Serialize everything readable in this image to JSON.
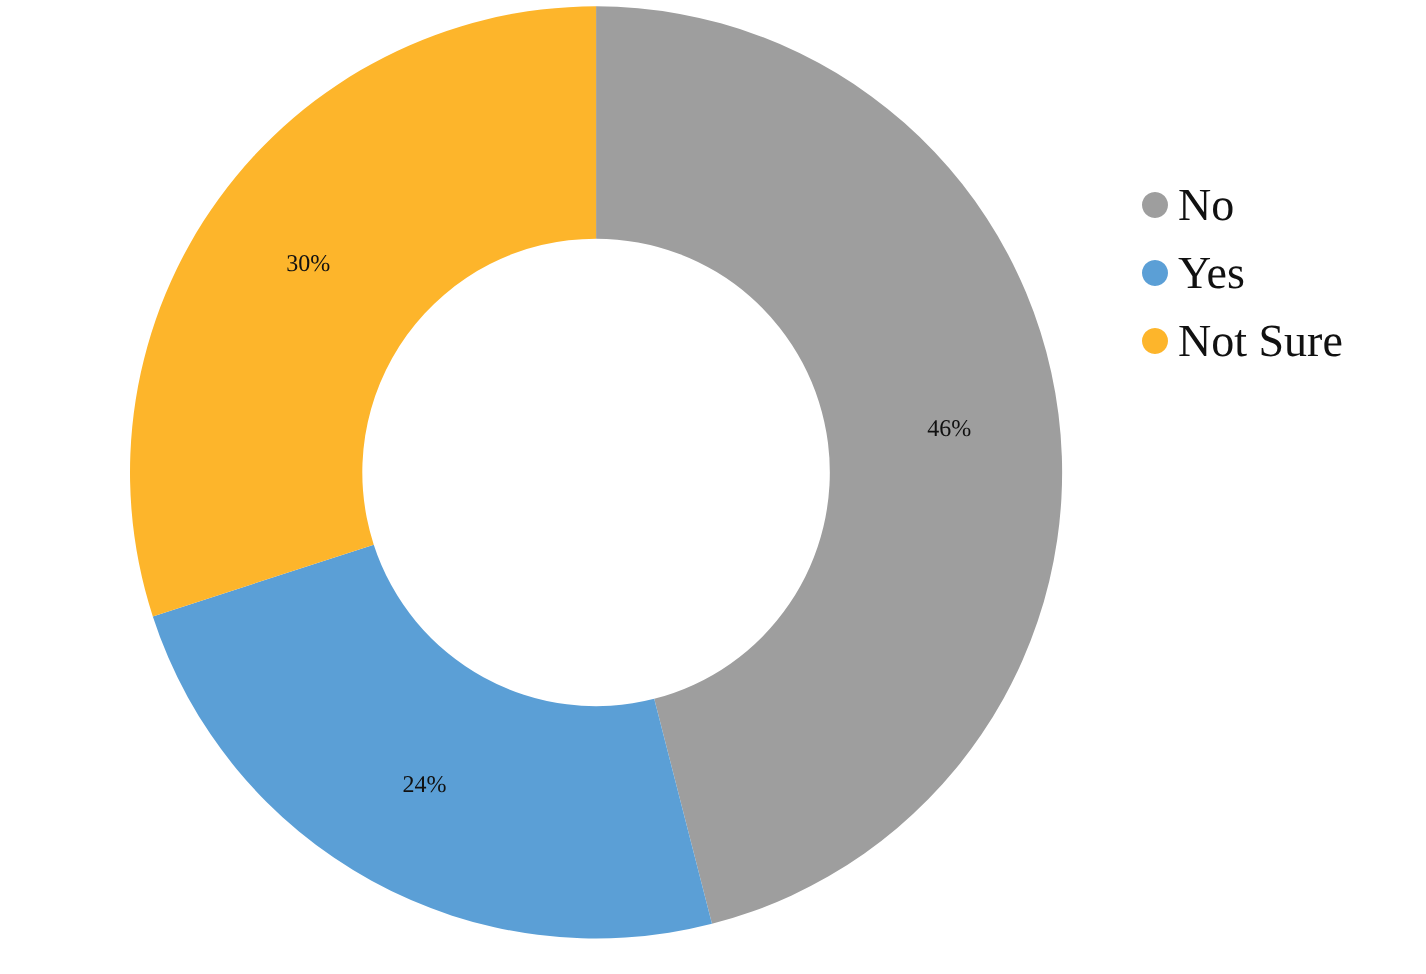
{
  "chart_data": {
    "type": "donut",
    "categories": [
      "No",
      "Yes",
      "Not Sure"
    ],
    "values": [
      46,
      24,
      30
    ],
    "colors": [
      "#9e9e9e",
      "#5b9fd6",
      "#fdb52b"
    ],
    "value_labels": [
      "46%",
      "24%",
      "30%"
    ],
    "legend": "top right"
  }
}
